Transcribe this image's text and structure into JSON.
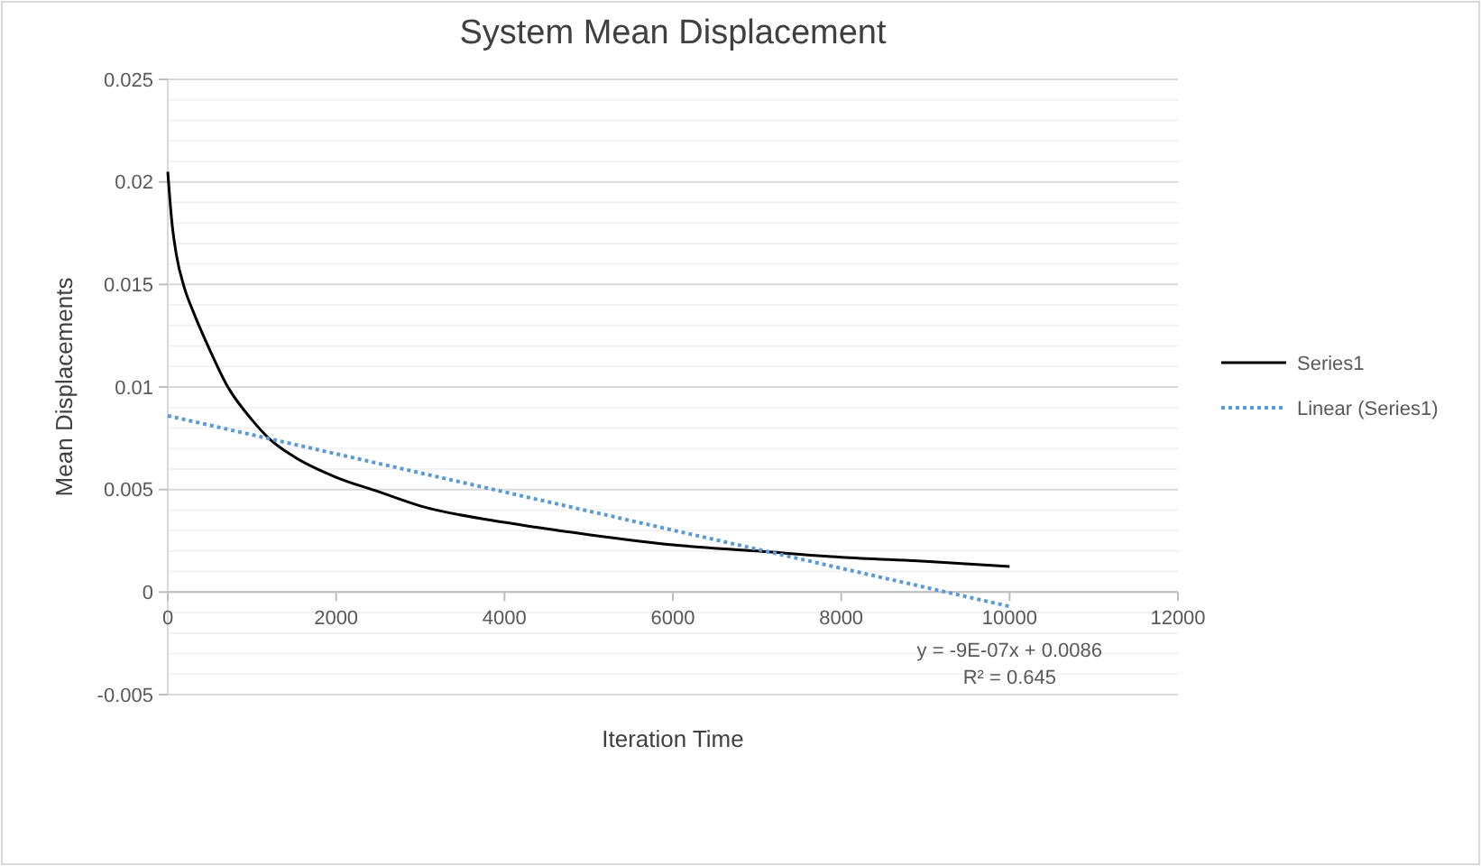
{
  "chart_data": {
    "type": "line",
    "title": "System Mean Displacement",
    "xlabel": "Iteration Time",
    "ylabel": "Mean Displacements",
    "xlim": [
      0,
      12000
    ],
    "xticks": [
      0,
      2000,
      4000,
      6000,
      8000,
      10000,
      12000
    ],
    "ylim": [
      -0.005,
      0.025
    ],
    "yticks": [
      -0.005,
      {
        "value": -0.004,
        "label": null
      },
      {
        "value": -0.003,
        "label": null
      },
      {
        "value": -0.002,
        "label": null
      },
      {
        "value": -0.001,
        "label": null
      },
      0,
      {
        "value": 0.001,
        "label": null
      },
      {
        "value": 0.002,
        "label": null
      },
      {
        "value": 0.003,
        "label": null
      },
      {
        "value": 0.004,
        "label": null
      },
      0.005,
      {
        "value": 0.006,
        "label": null
      },
      {
        "value": 0.007,
        "label": null
      },
      {
        "value": 0.008,
        "label": null
      },
      {
        "value": 0.009,
        "label": null
      },
      0.01,
      {
        "value": 0.011,
        "label": null
      },
      {
        "value": 0.012,
        "label": null
      },
      {
        "value": 0.013,
        "label": null
      },
      {
        "value": 0.014,
        "label": null
      },
      0.015,
      {
        "value": 0.016,
        "label": null
      },
      {
        "value": 0.017,
        "label": null
      },
      {
        "value": 0.018,
        "label": null
      },
      {
        "value": 0.019,
        "label": null
      },
      0.02,
      {
        "value": 0.021,
        "label": null
      },
      {
        "value": 0.022,
        "label": null
      },
      {
        "value": 0.023,
        "label": null
      },
      {
        "value": 0.024,
        "label": null
      },
      0.025
    ],
    "grid": "y",
    "legend": "right",
    "marker": "none",
    "series": [
      {
        "name": "Series1",
        "color": "#000000",
        "line_style": "solid",
        "x": [
          0,
          50,
          100,
          200,
          300,
          500,
          700,
          1000,
          1200,
          1500,
          2000,
          2500,
          3000,
          4000,
          5000,
          6000,
          7000,
          8000,
          9000,
          10000
        ],
        "values": [
          0.0205,
          0.018,
          0.0165,
          0.0148,
          0.0137,
          0.0118,
          0.0101,
          0.0084,
          0.0075,
          0.0066,
          0.0056,
          0.0049,
          0.0042,
          0.0034,
          0.0028,
          0.0023,
          0.002,
          0.0017,
          0.0015,
          0.00125
        ]
      },
      {
        "name": "Linear (Series1)",
        "color": "#5b9bd5",
        "line_style": "dotted",
        "x": [
          0,
          10000
        ],
        "values": [
          0.0086,
          -0.0007
        ]
      }
    ],
    "annotations": [
      "y = -9E-07x + 0.0086",
      "R² = 0.645"
    ]
  }
}
